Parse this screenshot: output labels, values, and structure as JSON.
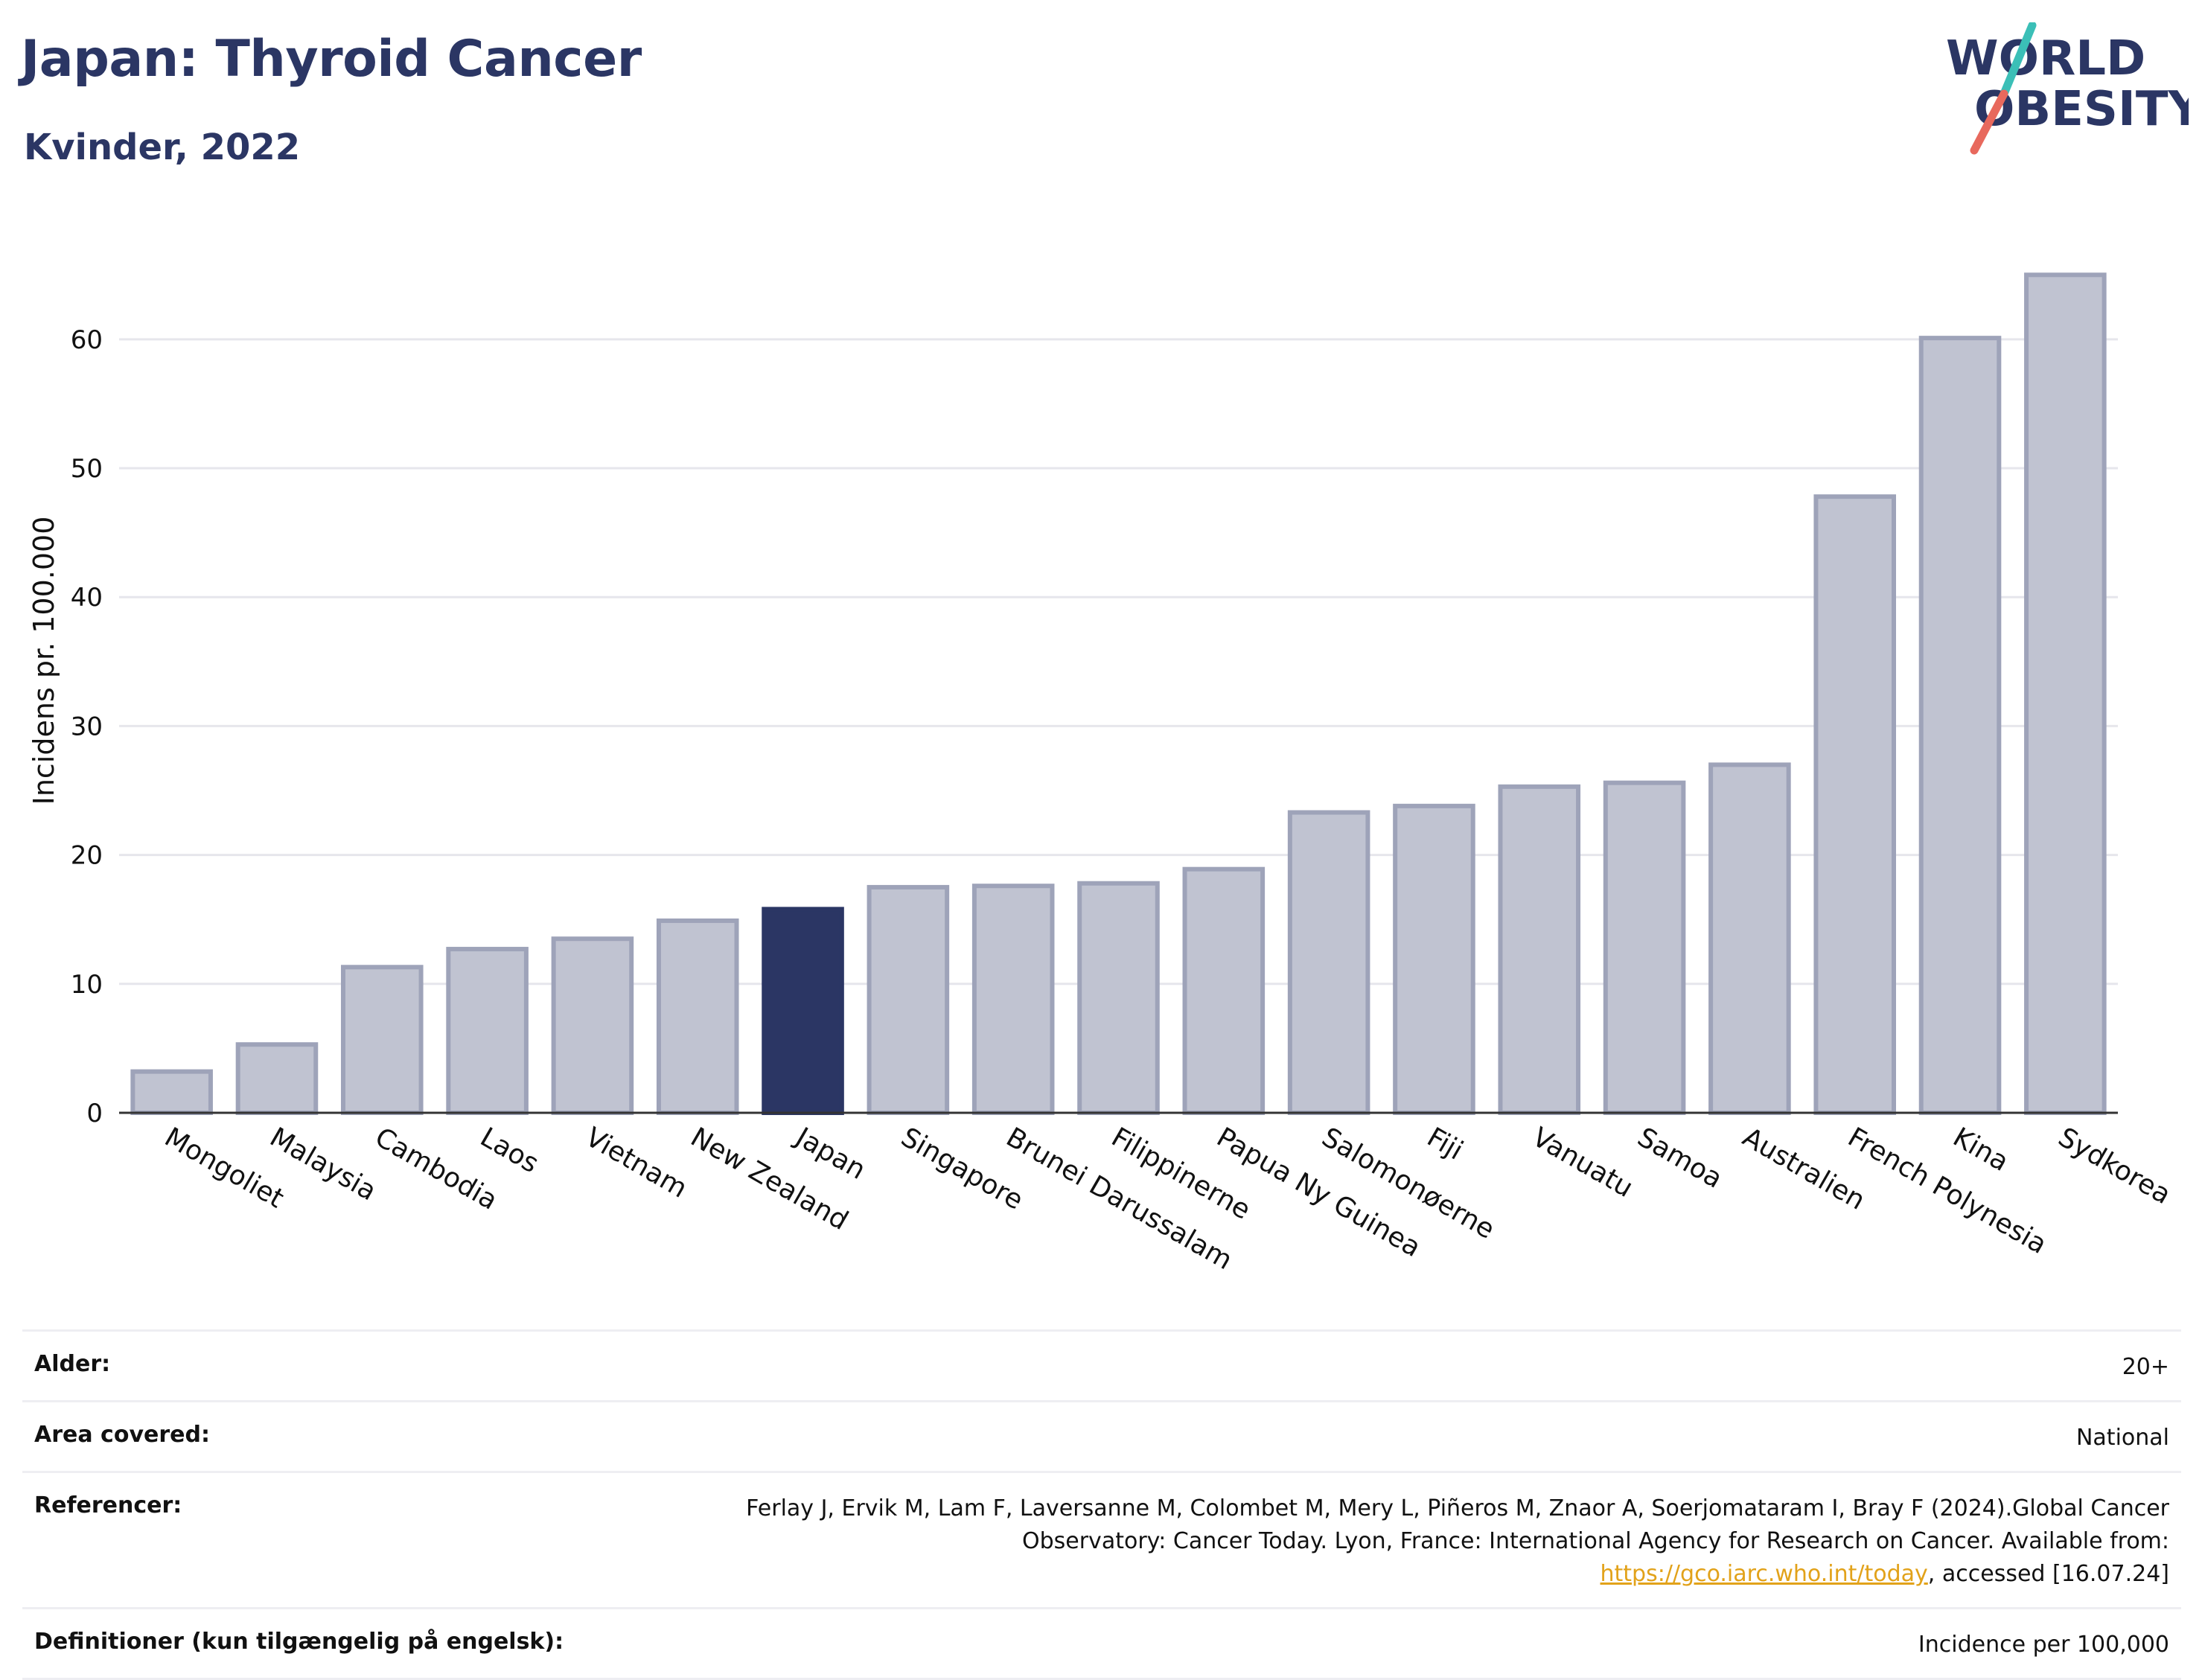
{
  "header": {
    "title": "Japan: Thyroid Cancer",
    "subtitle": "Kvinder, 2022"
  },
  "logo": {
    "line1": "WORLD",
    "line2": "OBESITY",
    "colors": {
      "text": "#2b3664",
      "slash_teal": "#3bbfb7",
      "slash_coral": "#e8695d"
    }
  },
  "colors": {
    "bar": "#c0c3d1",
    "bar_border": "#9ea3b9",
    "highlight": "#2b3664",
    "grid": "#e6e6ec"
  },
  "chart_data": {
    "type": "bar",
    "categories": [
      "Mongoliet",
      "Malaysia",
      "Cambodia",
      "Laos",
      "Vietnam",
      "New Zealand",
      "Japan",
      "Singapore",
      "Brunei Darussalam",
      "Filippinerne",
      "Papua Ny Guinea",
      "Salomonøerne",
      "Fiji",
      "Vanuatu",
      "Samoa",
      "Australien",
      "French Polynesia",
      "Kina",
      "Sydkorea"
    ],
    "values": [
      3.2,
      5.3,
      11.3,
      12.7,
      13.5,
      14.9,
      15.8,
      17.5,
      17.6,
      17.8,
      18.9,
      23.3,
      23.8,
      25.3,
      25.6,
      27.0,
      47.8,
      60.1,
      65.0
    ],
    "highlight": "Japan",
    "ylabel": "Incidens pr. 100.000",
    "xlabel": "",
    "ylim": [
      0,
      69
    ],
    "yticks": [
      0,
      10,
      20,
      30,
      40,
      50,
      60
    ],
    "grid": true
  },
  "info": [
    {
      "key": "Alder:",
      "value": "20+"
    },
    {
      "key": "Area covered:",
      "value": "National"
    },
    {
      "key": "Referencer:",
      "value_parts": {
        "before": "Ferlay J, Ervik M, Lam F, Laversanne M, Colombet M, Mery L, Piñeros M, Znaor A, Soerjomataram I, Bray F (2024).Global Cancer Observatory: Cancer Today. Lyon, France: International Agency for Research on Cancer. Available from: ",
        "link": "https://gco.iarc.who.int/today",
        "after": ", accessed [16.07.24]"
      }
    },
    {
      "key": "Definitioner (kun tilgængelig på engelsk):",
      "value": "Incidence per 100,000"
    }
  ]
}
